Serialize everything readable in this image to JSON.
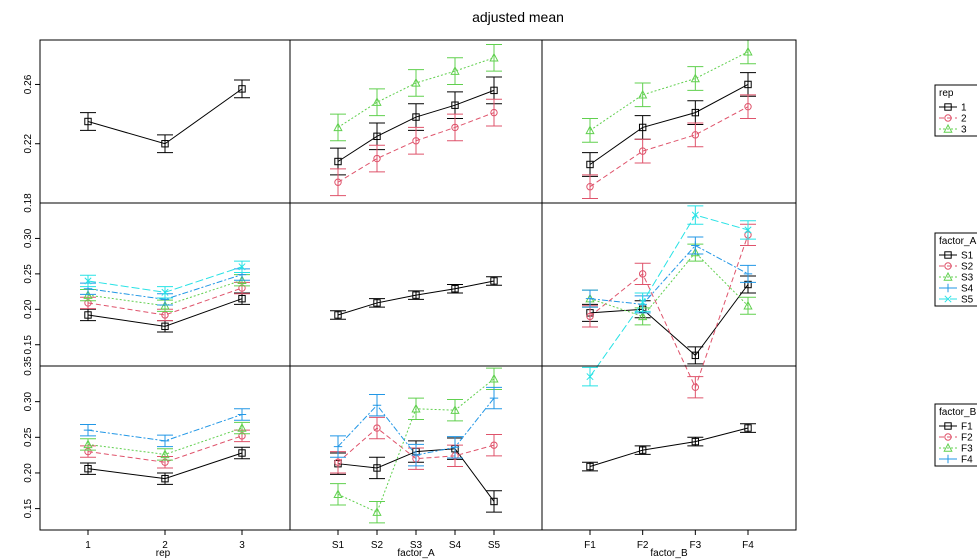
{
  "chart_data": {
    "type": "line",
    "title": "adjusted mean",
    "factors": {
      "rep": [
        "1",
        "2",
        "3"
      ],
      "factor_A": [
        "S1",
        "S2",
        "S3",
        "S4",
        "S5"
      ],
      "factor_B": [
        "F1",
        "F2",
        "F3",
        "F4"
      ]
    },
    "column_titles": [
      "rep",
      "factor_A",
      "factor_B"
    ],
    "row_ylims": [
      [
        0.18,
        0.29
      ],
      [
        0.12,
        0.35
      ],
      [
        0.12,
        0.35
      ]
    ],
    "row_yticks": [
      [
        {
          "v": 0.22,
          "t": "0.22"
        },
        {
          "v": 0.26,
          "t": "0.26"
        }
      ],
      [
        {
          "v": 0.15,
          "t": "0.15"
        },
        {
          "v": 0.2,
          "t": "0.20"
        },
        {
          "v": 0.25,
          "t": "0.25"
        },
        {
          "v": 0.3,
          "t": "0.30"
        }
      ],
      [
        {
          "v": 0.15,
          "t": "0.15"
        },
        {
          "v": 0.2,
          "t": "0.20"
        },
        {
          "v": 0.25,
          "t": "0.25"
        },
        {
          "v": 0.3,
          "t": "0.30"
        }
      ]
    ],
    "row_top_labels": [
      "0.18",
      "0.35"
    ],
    "panels": [
      {
        "row": 0,
        "col": 0,
        "series": [
          {
            "group": "",
            "values": [
              0.235,
              0.22,
              0.257
            ],
            "err": 0.006
          }
        ]
      },
      {
        "row": 0,
        "col": 1,
        "series": [
          {
            "group": "1",
            "values": [
              0.208,
              0.225,
              0.238,
              0.246,
              0.256
            ],
            "err": 0.009
          },
          {
            "group": "2",
            "values": [
              0.194,
              0.21,
              0.222,
              0.231,
              0.241
            ],
            "err": 0.009
          },
          {
            "group": "3",
            "values": [
              0.231,
              0.248,
              0.261,
              0.269,
              0.278
            ],
            "err": 0.009
          }
        ]
      },
      {
        "row": 0,
        "col": 2,
        "series": [
          {
            "group": "1",
            "values": [
              0.206,
              0.231,
              0.241,
              0.26
            ],
            "err": 0.008
          },
          {
            "group": "2",
            "values": [
              0.191,
              0.215,
              0.226,
              0.245
            ],
            "err": 0.008
          },
          {
            "group": "3",
            "values": [
              0.229,
              0.253,
              0.264,
              0.282
            ],
            "err": 0.008
          }
        ]
      },
      {
        "row": 1,
        "col": 0,
        "series": [
          {
            "group": "S1",
            "values": [
              0.192,
              0.176,
              0.215
            ],
            "err": 0.008
          },
          {
            "group": "S2",
            "values": [
              0.209,
              0.192,
              0.23
            ],
            "err": 0.008
          },
          {
            "group": "S3",
            "values": [
              0.22,
              0.205,
              0.241
            ],
            "err": 0.008
          },
          {
            "group": "S4",
            "values": [
              0.229,
              0.214,
              0.249
            ],
            "err": 0.008
          },
          {
            "group": "S5",
            "values": [
              0.24,
              0.224,
              0.26
            ],
            "err": 0.008
          }
        ]
      },
      {
        "row": 1,
        "col": 1,
        "series": [
          {
            "group": "",
            "values": [
              0.192,
              0.209,
              0.22,
              0.229,
              0.24
            ],
            "err": 0.006
          }
        ]
      },
      {
        "row": 1,
        "col": 2,
        "series": [
          {
            "group": "S1",
            "values": [
              0.195,
              0.2,
              0.135,
              0.235
            ],
            "err": 0.012
          },
          {
            "group": "S2",
            "values": [
              0.19,
              0.25,
              0.09,
              0.305
            ],
            "err": 0.015
          },
          {
            "group": "S3",
            "values": [
              0.215,
              0.19,
              0.28,
              0.205
            ],
            "err": 0.012
          },
          {
            "group": "S4",
            "values": [
              0.215,
              0.207,
              0.29,
              0.25
            ],
            "err": 0.012
          },
          {
            "group": "S5",
            "values": [
              0.105,
              0.21,
              0.333,
              0.312
            ],
            "err": 0.013
          }
        ]
      },
      {
        "row": 2,
        "col": 0,
        "series": [
          {
            "group": "F1",
            "values": [
              0.206,
              0.192,
              0.228
            ],
            "err": 0.008
          },
          {
            "group": "F2",
            "values": [
              0.23,
              0.215,
              0.252
            ],
            "err": 0.008
          },
          {
            "group": "F3",
            "values": [
              0.24,
              0.226,
              0.263
            ],
            "err": 0.008
          },
          {
            "group": "F4",
            "values": [
              0.26,
              0.245,
              0.282
            ],
            "err": 0.008
          }
        ]
      },
      {
        "row": 2,
        "col": 1,
        "series": [
          {
            "group": "F1",
            "values": [
              0.213,
              0.207,
              0.23,
              0.234,
              0.16
            ],
            "err": 0.015
          },
          {
            "group": "F2",
            "values": [
              0.215,
              0.263,
              0.22,
              0.224,
              0.239
            ],
            "err": 0.015
          },
          {
            "group": "F3",
            "values": [
              0.17,
              0.145,
              0.29,
              0.288,
              0.332
            ],
            "err": 0.015
          },
          {
            "group": "F4",
            "values": [
              0.237,
              0.295,
              0.225,
              0.236,
              0.305
            ],
            "err": 0.015
          }
        ]
      },
      {
        "row": 2,
        "col": 2,
        "series": [
          {
            "group": "",
            "values": [
              0.209,
              0.232,
              0.244,
              0.263
            ],
            "err": 0.006
          }
        ]
      }
    ],
    "legends": [
      {
        "title": "rep",
        "items": [
          "1",
          "2",
          "3"
        ]
      },
      {
        "title": "factor_A",
        "items": [
          "S1",
          "S2",
          "S3",
          "S4",
          "S5"
        ]
      },
      {
        "title": "factor_B",
        "items": [
          "F1",
          "F2",
          "F3",
          "F4"
        ]
      }
    ],
    "styles": [
      {
        "color": "#000000",
        "dash": "",
        "marker": "square"
      },
      {
        "color": "#df536b",
        "dash": "5,3",
        "marker": "circle"
      },
      {
        "color": "#61d04f",
        "dash": "2,2",
        "marker": "triangle"
      },
      {
        "color": "#2297e6",
        "dash": "6,2,2,2",
        "marker": "plus"
      },
      {
        "color": "#28e2e5",
        "dash": "8,3",
        "marker": "x"
      }
    ],
    "grid": false
  }
}
